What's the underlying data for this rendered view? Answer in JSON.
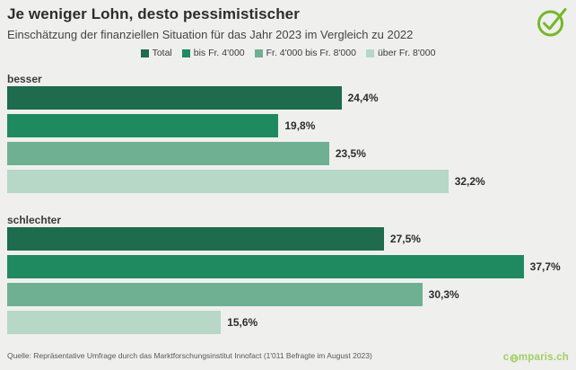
{
  "header": {
    "title": "Je weniger Lohn, desto pessimistischer",
    "subtitle": "Einschätzung der finanziellen Situation für das Jahr 2023 im Vergleich zu 2022"
  },
  "icons": {
    "check": "check-circle-icon",
    "globe": "globe-icon"
  },
  "colors": {
    "background": "#efefee",
    "accent_green": "#76b82a",
    "logo_green": "#a3cf63",
    "series": [
      "#1e6b4d",
      "#1f8a60",
      "#6fb092",
      "#b7d7c7"
    ]
  },
  "chart_data": {
    "type": "bar",
    "orientation": "horizontal",
    "legend": [
      "Total",
      "bis Fr. 4'000",
      "Fr. 4'000 bis Fr. 8'000",
      "über Fr. 8'000"
    ],
    "series_colors": [
      "#1e6b4d",
      "#1f8a60",
      "#6fb092",
      "#b7d7c7"
    ],
    "xlim": [
      0,
      41
    ],
    "grid": false,
    "legend_position": "top-center",
    "groups": [
      {
        "label": "besser",
        "values": [
          24.4,
          19.8,
          23.5,
          32.2
        ],
        "display": [
          "24,4%",
          "19,8%",
          "23,5%",
          "32,2%"
        ]
      },
      {
        "label": "schlechter",
        "values": [
          27.5,
          37.7,
          30.3,
          15.6
        ],
        "display": [
          "27,5%",
          "37,7%",
          "30,3%",
          "15,6%"
        ]
      }
    ]
  },
  "footer": {
    "source": "Quelle: Repräsentative Umfrage durch das Marktforschungsinstitut Innofact (1'011 Befragte im August 2023)",
    "logo_prefix": "c",
    "logo_suffix": "mparis.ch"
  }
}
